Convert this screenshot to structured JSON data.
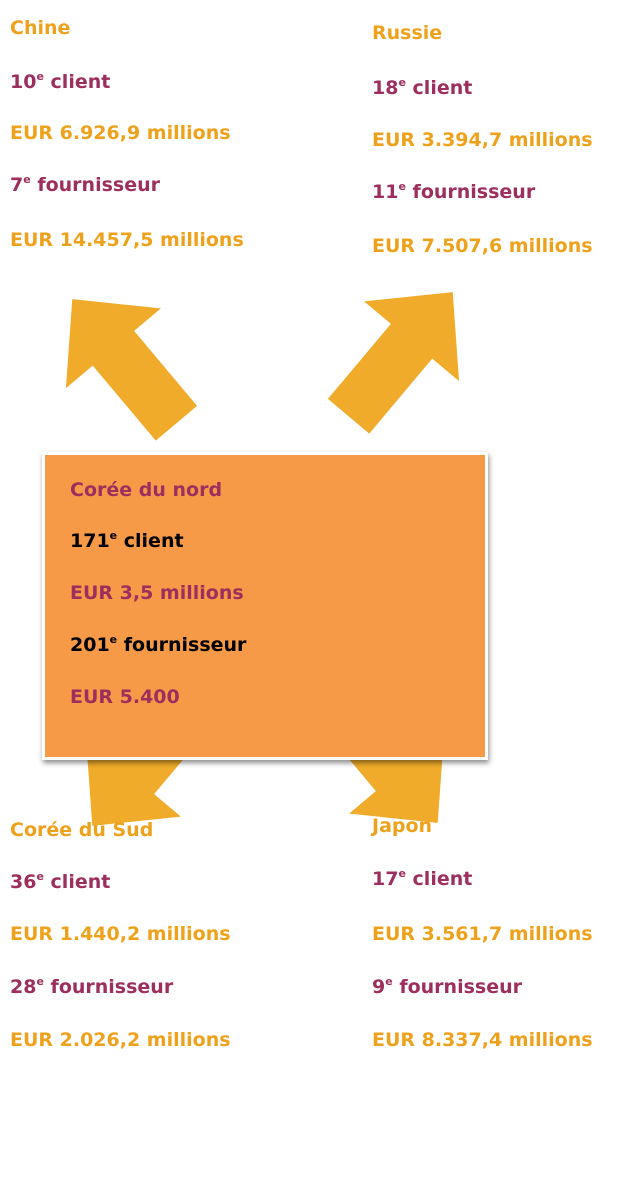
{
  "countries": [
    {
      "name": "Chine",
      "client_rank": "10",
      "client_suffix": "e",
      "client_label": "client",
      "client_value": "EUR 6.926,9 millions",
      "supplier_rank": "7",
      "supplier_suffix": "e",
      "supplier_label": "fournisseur",
      "supplier_value": "EUR 14.457,5 millions"
    },
    {
      "name": "Russie",
      "client_rank": "18",
      "client_suffix": "e",
      "client_label": "client",
      "client_value": "EUR 3.394,7 millions",
      "supplier_rank": "11",
      "supplier_suffix": "e",
      "supplier_label": "fournisseur",
      "supplier_value": "EUR 7.507,6 millions"
    },
    {
      "name": "Corée du nord",
      "client_rank": "171",
      "client_suffix": "e",
      "client_label": "client",
      "client_value": "EUR 3,5 millions",
      "supplier_rank": "201",
      "supplier_suffix": "e",
      "supplier_label": "fournisseur",
      "supplier_value": "EUR 5.400"
    },
    {
      "name": "Corée du Sud",
      "client_rank": "36",
      "client_suffix": "e",
      "client_label": "client",
      "client_value": "EUR 1.440,2 millions",
      "supplier_rank": "28",
      "supplier_suffix": "e",
      "supplier_label": "fournisseur",
      "supplier_value": "EUR 2.026,2 millions"
    },
    {
      "name": "Japon",
      "client_rank": "17",
      "client_suffix": "e",
      "client_label": "client",
      "client_value": "EUR 3.561,7 millions",
      "supplier_rank": "9",
      "supplier_suffix": "e",
      "supplier_label": "fournisseur",
      "supplier_value": "EUR 8.337,4 millions"
    }
  ]
}
